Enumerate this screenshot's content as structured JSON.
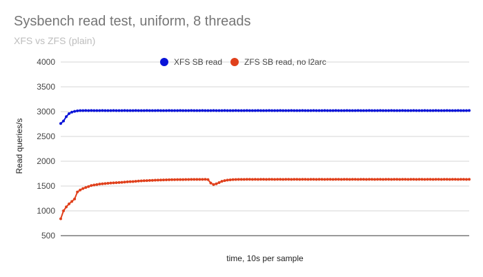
{
  "chart_data": {
    "type": "line",
    "title": "Sysbench read test, uniform, 8 threads",
    "subtitle": "XFS vs ZFS (plain)",
    "xlabel": "time, 10s per sample",
    "ylabel": "Read queries/s",
    "ylim": [
      500,
      4000
    ],
    "yticks": [
      500,
      1000,
      1500,
      2000,
      2500,
      3000,
      3500,
      4000
    ],
    "grid": true,
    "legend_position": "top",
    "markers": true,
    "x": [
      1,
      2,
      3,
      4,
      5,
      6,
      7,
      8,
      9,
      10,
      11,
      12,
      13,
      14,
      15,
      16,
      17,
      18,
      19,
      20,
      21,
      22,
      23,
      24,
      25,
      26,
      27,
      28,
      29,
      30,
      31,
      32,
      33,
      34,
      35,
      36,
      37,
      38,
      39,
      40,
      41,
      42,
      43,
      44,
      45,
      46,
      47,
      48,
      49,
      50,
      51,
      52,
      53,
      54,
      55,
      56,
      57,
      58,
      59,
      60,
      61,
      62,
      63,
      64,
      65,
      66,
      67,
      68,
      69,
      70,
      71,
      72,
      73,
      74,
      75,
      76,
      77,
      78,
      79,
      80,
      81,
      82,
      83,
      84,
      85,
      86,
      87,
      88,
      89,
      90,
      91,
      92,
      93,
      94,
      95,
      96,
      97,
      98,
      99,
      100,
      101,
      102,
      103,
      104,
      105,
      106,
      107,
      108,
      109,
      110,
      111,
      112,
      113,
      114,
      115,
      116,
      117,
      118,
      119,
      120,
      121,
      122,
      123,
      124,
      125,
      126,
      127,
      128,
      129,
      130,
      131,
      132,
      133,
      134,
      135,
      136,
      137,
      138,
      139,
      140,
      141,
      142,
      143,
      144,
      145,
      146,
      147,
      148
    ],
    "series": [
      {
        "name": "XFS SB read",
        "color": "#0a14d8",
        "values": [
          2760,
          2810,
          2900,
          2960,
          2990,
          3005,
          3015,
          3020,
          3020,
          3022,
          3020,
          3022,
          3020,
          3021,
          3020,
          3022,
          3020,
          3021,
          3020,
          3022,
          3020,
          3021,
          3020,
          3022,
          3020,
          3021,
          3020,
          3022,
          3020,
          3021,
          3020,
          3022,
          3020,
          3021,
          3020,
          3022,
          3020,
          3021,
          3020,
          3022,
          3020,
          3021,
          3020,
          3022,
          3020,
          3021,
          3020,
          3022,
          3020,
          3021,
          3020,
          3022,
          3020,
          3021,
          3020,
          3022,
          3020,
          3021,
          3020,
          3022,
          3020,
          3021,
          3020,
          3022,
          3020,
          3021,
          3020,
          3022,
          3020,
          3021,
          3020,
          3022,
          3020,
          3021,
          3020,
          3022,
          3020,
          3021,
          3020,
          3022,
          3020,
          3021,
          3020,
          3022,
          3020,
          3021,
          3020,
          3022,
          3020,
          3021,
          3020,
          3022,
          3020,
          3021,
          3020,
          3022,
          3020,
          3021,
          3020,
          3022,
          3020,
          3021,
          3020,
          3022,
          3020,
          3021,
          3020,
          3022,
          3020,
          3021,
          3020,
          3022,
          3020,
          3021,
          3020,
          3022,
          3020,
          3021,
          3020,
          3022,
          3020,
          3021,
          3020,
          3022,
          3020,
          3021,
          3020,
          3022,
          3020,
          3021,
          3020,
          3022,
          3020,
          3021,
          3020,
          3022,
          3020,
          3021,
          3020,
          3022,
          3020,
          3021,
          3020,
          3022,
          3020,
          3021,
          3020,
          3022
        ]
      },
      {
        "name": "ZFS SB read, no l2arc",
        "color": "#e0401c",
        "values": [
          840,
          1000,
          1080,
          1140,
          1190,
          1240,
          1380,
          1420,
          1450,
          1470,
          1490,
          1510,
          1520,
          1530,
          1540,
          1545,
          1550,
          1555,
          1560,
          1565,
          1568,
          1572,
          1575,
          1580,
          1585,
          1588,
          1590,
          1595,
          1600,
          1605,
          1608,
          1610,
          1613,
          1615,
          1618,
          1620,
          1622,
          1624,
          1625,
          1626,
          1628,
          1629,
          1630,
          1630,
          1631,
          1632,
          1632,
          1633,
          1633,
          1634,
          1634,
          1634,
          1635,
          1630,
          1560,
          1530,
          1545,
          1570,
          1595,
          1610,
          1620,
          1625,
          1630,
          1632,
          1633,
          1634,
          1634,
          1635,
          1635,
          1634,
          1636,
          1634,
          1635,
          1636,
          1634,
          1635,
          1636,
          1634,
          1635,
          1636,
          1634,
          1635,
          1636,
          1634,
          1635,
          1636,
          1634,
          1635,
          1636,
          1634,
          1635,
          1636,
          1634,
          1635,
          1636,
          1634,
          1635,
          1636,
          1634,
          1635,
          1636,
          1634,
          1635,
          1636,
          1634,
          1635,
          1636,
          1634,
          1635,
          1636,
          1634,
          1635,
          1636,
          1634,
          1635,
          1636,
          1634,
          1635,
          1636,
          1634,
          1635,
          1636,
          1634,
          1635,
          1636,
          1634,
          1635,
          1636,
          1634,
          1635,
          1636,
          1634,
          1635,
          1636,
          1634,
          1635,
          1636,
          1634,
          1635,
          1636,
          1634,
          1635,
          1636,
          1634,
          1635,
          1636,
          1634,
          1635
        ]
      }
    ]
  }
}
